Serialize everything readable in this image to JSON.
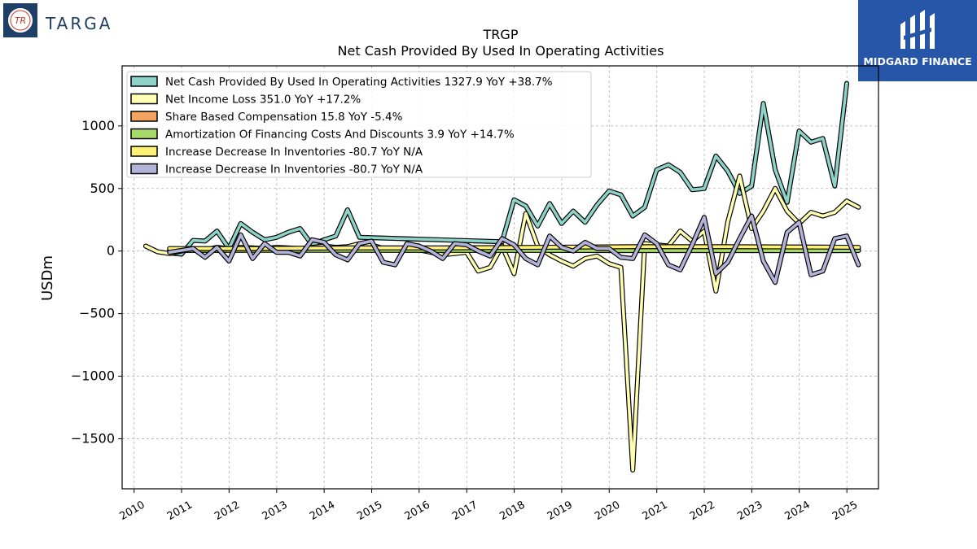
{
  "header": {
    "company_brand": "TARGA",
    "company_logo_letters": "TR",
    "partner_brand": "MIDGARD FINANCE"
  },
  "colors": {
    "net_cash": "#8dd3c7",
    "net_income": "#ffffb3",
    "share_comp": "#f4a460",
    "amortization": "#a6d96a",
    "inventories_yellow": "#fff176",
    "inventories_purple": "#b3b3d9",
    "partner_bg": "#2756a8"
  },
  "chart_data": {
    "type": "line",
    "title": "TRGP",
    "subtitle": "Net Cash Provided By Used In Operating Activities",
    "ylabel": "USDm",
    "xlabel": "",
    "xlim": [
      "2009-10-01",
      "2025-09-01"
    ],
    "ylim": [
      -1900,
      1480
    ],
    "yticks": [
      1000,
      500,
      0,
      -500,
      -1000,
      -1500
    ],
    "ytick_labels": [
      "1000",
      "500",
      "0",
      "−500",
      "−1000",
      "−1500"
    ],
    "xticks": [
      "2010",
      "2011",
      "2012",
      "2013",
      "2014",
      "2015",
      "2016",
      "2017",
      "2018",
      "2019",
      "2020",
      "2021",
      "2022",
      "2023",
      "2024",
      "2025"
    ],
    "grid": true,
    "legend_position": "top-left",
    "series": [
      {
        "name": "Net Cash Provided By Used In Operating Activities  1327.9 YoY +38.7%",
        "color_key": "net_cash",
        "points": [
          [
            "2010-09-30",
            -15
          ],
          [
            "2010-12-31",
            -25
          ],
          [
            "2011-03-31",
            85
          ],
          [
            "2011-06-30",
            80
          ],
          [
            "2011-09-30",
            160
          ],
          [
            "2011-12-31",
            20
          ],
          [
            "2012-03-31",
            220
          ],
          [
            "2012-06-30",
            150
          ],
          [
            "2012-09-30",
            90
          ],
          [
            "2012-12-31",
            110
          ],
          [
            "2013-03-31",
            150
          ],
          [
            "2013-06-30",
            180
          ],
          [
            "2013-09-30",
            50
          ],
          [
            "2013-12-31",
            90
          ],
          [
            "2014-03-31",
            120
          ],
          [
            "2014-06-30",
            330
          ],
          [
            "2014-09-30",
            110
          ],
          [
            "2017-09-30",
            75
          ],
          [
            "2017-12-31",
            410
          ],
          [
            "2018-03-31",
            360
          ],
          [
            "2018-06-30",
            200
          ],
          [
            "2018-09-30",
            380
          ],
          [
            "2018-12-31",
            220
          ],
          [
            "2019-03-31",
            320
          ],
          [
            "2019-06-30",
            230
          ],
          [
            "2019-09-30",
            370
          ],
          [
            "2019-12-31",
            480
          ],
          [
            "2020-03-31",
            450
          ],
          [
            "2020-06-30",
            280
          ],
          [
            "2020-09-30",
            350
          ],
          [
            "2020-12-31",
            650
          ],
          [
            "2021-03-31",
            690
          ],
          [
            "2021-06-30",
            630
          ],
          [
            "2021-09-30",
            490
          ],
          [
            "2021-12-31",
            500
          ],
          [
            "2022-03-31",
            760
          ],
          [
            "2022-06-30",
            640
          ],
          [
            "2022-09-30",
            460
          ],
          [
            "2022-12-31",
            520
          ],
          [
            "2023-03-31",
            1180
          ],
          [
            "2023-06-30",
            650
          ],
          [
            "2023-09-30",
            390
          ],
          [
            "2023-12-31",
            960
          ],
          [
            "2024-03-31",
            870
          ],
          [
            "2024-06-30",
            900
          ],
          [
            "2024-09-30",
            520
          ],
          [
            "2024-12-31",
            1340
          ]
        ]
      },
      {
        "name": "Net Income Loss  351.0 YoY +17.2%",
        "color_key": "net_income",
        "points": [
          [
            "2010-03-31",
            40
          ],
          [
            "2010-06-30",
            -5
          ],
          [
            "2010-09-30",
            -20
          ],
          [
            "2010-12-31",
            0
          ],
          [
            "2011-03-31",
            20
          ],
          [
            "2011-06-30",
            10
          ],
          [
            "2011-09-30",
            30
          ],
          [
            "2011-12-31",
            20
          ],
          [
            "2012-03-31",
            30
          ],
          [
            "2012-06-30",
            25
          ],
          [
            "2012-09-30",
            20
          ],
          [
            "2012-12-31",
            30
          ],
          [
            "2013-03-31",
            25
          ],
          [
            "2013-06-30",
            20
          ],
          [
            "2013-09-30",
            30
          ],
          [
            "2013-12-31",
            40
          ],
          [
            "2014-03-31",
            30
          ],
          [
            "2014-06-30",
            35
          ],
          [
            "2014-09-30",
            60
          ],
          [
            "2014-12-31",
            50
          ],
          [
            "2015-03-31",
            20
          ],
          [
            "2015-06-30",
            10
          ],
          [
            "2015-09-30",
            20
          ],
          [
            "2015-12-31",
            10
          ],
          [
            "2016-03-31",
            -10
          ],
          [
            "2016-06-30",
            -30
          ],
          [
            "2016-09-30",
            -20
          ],
          [
            "2016-12-31",
            -10
          ],
          [
            "2017-03-31",
            -160
          ],
          [
            "2017-06-30",
            -130
          ],
          [
            "2017-09-30",
            40
          ],
          [
            "2017-12-31",
            -180
          ],
          [
            "2018-03-31",
            300
          ],
          [
            "2018-06-30",
            40
          ],
          [
            "2018-09-30",
            -30
          ],
          [
            "2018-12-31",
            -80
          ],
          [
            "2019-03-31",
            -120
          ],
          [
            "2019-06-30",
            -60
          ],
          [
            "2019-09-30",
            -40
          ],
          [
            "2019-12-31",
            -100
          ],
          [
            "2020-03-31",
            -130
          ],
          [
            "2020-06-30",
            -1750
          ],
          [
            "2020-09-30",
            60
          ],
          [
            "2020-12-31",
            50
          ],
          [
            "2021-03-31",
            40
          ],
          [
            "2021-06-30",
            160
          ],
          [
            "2021-09-30",
            80
          ],
          [
            "2021-12-31",
            160
          ],
          [
            "2022-03-31",
            -320
          ],
          [
            "2022-06-30",
            230
          ],
          [
            "2022-09-30",
            600
          ],
          [
            "2022-12-31",
            180
          ],
          [
            "2023-03-31",
            320
          ],
          [
            "2023-06-30",
            500
          ],
          [
            "2023-09-30",
            320
          ],
          [
            "2023-12-31",
            220
          ],
          [
            "2024-03-31",
            310
          ],
          [
            "2024-06-30",
            280
          ],
          [
            "2024-09-30",
            310
          ],
          [
            "2024-12-31",
            400
          ],
          [
            "2025-03-31",
            350
          ]
        ]
      },
      {
        "name": "Share Based Compensation  15.8 YoY -5.4%",
        "color_key": "share_comp",
        "points": [
          [
            "2010-09-30",
            5
          ],
          [
            "2012-06-30",
            8
          ],
          [
            "2014-06-30",
            12
          ],
          [
            "2016-06-30",
            15
          ],
          [
            "2018-06-30",
            16
          ],
          [
            "2020-06-30",
            17
          ],
          [
            "2022-06-30",
            18
          ],
          [
            "2024-06-30",
            17
          ],
          [
            "2025-03-31",
            16
          ]
        ]
      },
      {
        "name": "Amortization Of Financing Costs And Discounts  3.9 YoY +14.7%",
        "color_key": "amortization",
        "points": [
          [
            "2010-09-30",
            5
          ],
          [
            "2012-06-30",
            6
          ],
          [
            "2014-06-30",
            6
          ],
          [
            "2016-06-30",
            5
          ],
          [
            "2018-06-30",
            5
          ],
          [
            "2020-06-30",
            4
          ],
          [
            "2022-06-30",
            4
          ],
          [
            "2024-06-30",
            3
          ],
          [
            "2025-03-31",
            4
          ]
        ]
      },
      {
        "name": "Increase Decrease In Inventories  -80.7 YoY N/A",
        "color_key": "inventories_yellow",
        "points": [
          [
            "2010-09-30",
            20
          ],
          [
            "2012-06-30",
            20
          ],
          [
            "2014-06-30",
            25
          ],
          [
            "2016-06-30",
            25
          ],
          [
            "2018-06-30",
            30
          ],
          [
            "2020-06-30",
            35
          ],
          [
            "2022-06-30",
            35
          ],
          [
            "2024-06-30",
            32
          ],
          [
            "2025-03-31",
            30
          ]
        ]
      },
      {
        "name": "Increase Decrease In Inventories  -80.7 YoY N/A",
        "color_key": "inventories_purple",
        "points": [
          [
            "2010-09-30",
            -10
          ],
          [
            "2011-03-31",
            20
          ],
          [
            "2011-06-30",
            -50
          ],
          [
            "2011-09-30",
            30
          ],
          [
            "2011-12-31",
            -80
          ],
          [
            "2012-03-31",
            130
          ],
          [
            "2012-06-30",
            -60
          ],
          [
            "2012-09-30",
            60
          ],
          [
            "2012-12-31",
            -10
          ],
          [
            "2013-03-31",
            -10
          ],
          [
            "2013-06-30",
            -40
          ],
          [
            "2013-09-30",
            90
          ],
          [
            "2013-12-31",
            70
          ],
          [
            "2014-03-31",
            -30
          ],
          [
            "2014-06-30",
            -70
          ],
          [
            "2014-09-30",
            60
          ],
          [
            "2014-12-31",
            80
          ],
          [
            "2015-03-31",
            -90
          ],
          [
            "2015-06-30",
            -110
          ],
          [
            "2015-09-30",
            60
          ],
          [
            "2015-12-31",
            40
          ],
          [
            "2016-03-31",
            0
          ],
          [
            "2016-06-30",
            -60
          ],
          [
            "2016-09-30",
            60
          ],
          [
            "2016-12-31",
            50
          ],
          [
            "2017-03-31",
            0
          ],
          [
            "2017-06-30",
            -40
          ],
          [
            "2017-09-30",
            100
          ],
          [
            "2017-12-31",
            50
          ],
          [
            "2018-03-31",
            -60
          ],
          [
            "2018-06-30",
            -110
          ],
          [
            "2018-09-30",
            120
          ],
          [
            "2018-12-31",
            30
          ],
          [
            "2019-03-31",
            0
          ],
          [
            "2019-06-30",
            70
          ],
          [
            "2019-09-30",
            20
          ],
          [
            "2019-12-31",
            20
          ],
          [
            "2020-03-31",
            -50
          ],
          [
            "2020-06-30",
            -60
          ],
          [
            "2020-09-30",
            130
          ],
          [
            "2020-12-31",
            60
          ],
          [
            "2021-03-31",
            -110
          ],
          [
            "2021-06-30",
            -150
          ],
          [
            "2021-09-30",
            50
          ],
          [
            "2021-12-31",
            270
          ],
          [
            "2022-03-31",
            -180
          ],
          [
            "2022-06-30",
            -90
          ],
          [
            "2022-09-30",
            100
          ],
          [
            "2022-12-31",
            280
          ],
          [
            "2023-03-31",
            -80
          ],
          [
            "2023-06-30",
            -250
          ],
          [
            "2023-09-30",
            150
          ],
          [
            "2023-12-31",
            230
          ],
          [
            "2024-03-31",
            -190
          ],
          [
            "2024-06-30",
            -160
          ],
          [
            "2024-09-30",
            100
          ],
          [
            "2024-12-31",
            120
          ],
          [
            "2025-03-31",
            -110
          ]
        ]
      }
    ]
  }
}
